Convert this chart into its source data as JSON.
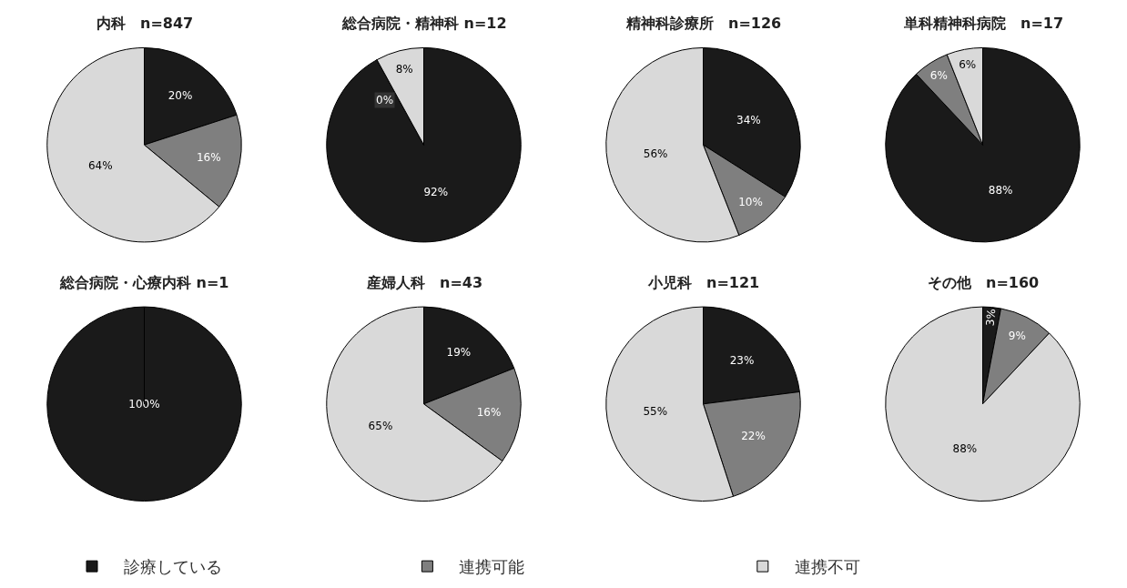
{
  "chart_data": [
    {
      "type": "pie",
      "title": "内科　n=847",
      "categories": [
        "診療している",
        "連携可能",
        "連携不可"
      ],
      "values": [
        20,
        16,
        64
      ],
      "colors": [
        "#1a1a1a",
        "#7f7f7f",
        "#d9d9d9"
      ],
      "value_labels": [
        "20%",
        "16%",
        "64%"
      ],
      "legend": "bottom"
    },
    {
      "type": "pie",
      "title": "総合病院・精神科 n=12",
      "categories": [
        null,
        null,
        null
      ],
      "values": [
        92,
        0,
        8
      ],
      "colors": [
        "#1a1a1a",
        "#7f7f7f",
        "#d9d9d9"
      ],
      "value_labels": [
        "92%",
        "0%",
        "8%"
      ]
    },
    {
      "type": "pie",
      "title": "精神科診療所　n=126",
      "categories": [
        null,
        null,
        null
      ],
      "values": [
        34,
        10,
        56
      ],
      "colors": [
        "#1a1a1a",
        "#7f7f7f",
        "#d9d9d9"
      ],
      "value_labels": [
        "34%",
        "10%",
        "56%"
      ]
    },
    {
      "type": "pie",
      "title": "単科精神科病院　n=17",
      "categories": [
        null,
        null,
        null
      ],
      "values": [
        88,
        6,
        6
      ],
      "colors": [
        "#1a1a1a",
        "#7f7f7f",
        "#d9d9d9"
      ],
      "value_labels": [
        "88%",
        "6%",
        "6%"
      ]
    },
    {
      "type": "pie",
      "title": "総合病院・心療内科 n=1",
      "categories": [
        null,
        null,
        null
      ],
      "values": [
        100,
        0,
        0
      ],
      "colors": [
        "#1a1a1a",
        "#7f7f7f",
        "#d9d9d9"
      ],
      "value_labels": [
        "100%",
        null,
        null
      ]
    },
    {
      "type": "pie",
      "title": "産婦人科　n=43",
      "categories": [
        null,
        null,
        null
      ],
      "values": [
        19,
        16,
        65
      ],
      "colors": [
        "#1a1a1a",
        "#7f7f7f",
        "#d9d9d9"
      ],
      "value_labels": [
        "19%",
        "16%",
        "65%"
      ]
    },
    {
      "type": "pie",
      "title": "小児科　n=121",
      "categories": [
        null,
        null,
        null
      ],
      "values": [
        23,
        22,
        55
      ],
      "colors": [
        "#1a1a1a",
        "#7f7f7f",
        "#d9d9d9"
      ],
      "value_labels": [
        "23%",
        "22%",
        "55%"
      ]
    },
    {
      "type": "pie",
      "title": "その他　n=160",
      "categories": [
        null,
        null,
        null
      ],
      "values": [
        3,
        9,
        88
      ],
      "colors": [
        "#1a1a1a",
        "#7f7f7f",
        "#d9d9d9"
      ],
      "value_labels": [
        "3%",
        "9%",
        "88%"
      ]
    }
  ]
}
